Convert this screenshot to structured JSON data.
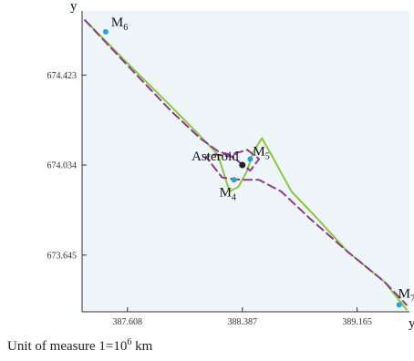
{
  "chart_data": {
    "type": "line",
    "xlabel": "y",
    "ylabel": "y",
    "xlim": [
      387.3,
      389.52
    ],
    "ylim": [
      673.4,
      674.7
    ],
    "x_ticks": [
      "387.608",
      "388.387",
      "389.165"
    ],
    "y_ticks": [
      "674.423",
      "674.034",
      "673.645"
    ],
    "grid": false,
    "background": "#eef6f9",
    "series": [
      {
        "style": "solid",
        "color": "#8dc63f",
        "x": [
          387.32,
          387.63,
          387.9,
          388.1,
          388.22,
          388.27,
          388.3,
          388.36,
          388.42,
          388.46,
          388.52,
          388.6,
          388.72,
          388.9,
          389.1,
          389.35,
          389.5
        ],
        "y": [
          674.66,
          674.46,
          674.29,
          674.16,
          674.08,
          673.98,
          673.92,
          673.94,
          674.01,
          674.09,
          674.15,
          674.06,
          673.92,
          673.8,
          673.66,
          673.53,
          673.41
        ]
      },
      {
        "style": "dashed",
        "color": "#8b3c8f",
        "x": [
          387.32,
          387.63,
          387.9,
          388.1,
          388.23,
          388.3,
          388.37,
          388.42,
          388.46,
          388.5,
          388.44,
          388.42,
          388.38,
          388.32,
          388.2,
          388.14,
          388.25,
          388.38,
          388.5,
          388.65,
          388.85,
          389.1,
          389.35,
          389.5
        ],
        "y": [
          674.66,
          674.45,
          674.27,
          674.15,
          674.09,
          674.08,
          674.09,
          674.1,
          674.08,
          674.06,
          674.01,
          674.02,
          674.04,
          674.07,
          674.08,
          674.07,
          673.98,
          673.97,
          673.97,
          673.92,
          673.8,
          673.66,
          673.53,
          673.43
        ]
      }
    ],
    "points": [
      {
        "label": "M",
        "sub": "6",
        "x": 387.46,
        "y": 674.61,
        "color": "#29a3d6"
      },
      {
        "label": "M",
        "sub": "5",
        "x": 388.44,
        "y": 674.06,
        "color": "#29a3d6"
      },
      {
        "label": "M",
        "sub": "4",
        "x": 388.33,
        "y": 673.97,
        "color": "#29a3d6"
      },
      {
        "label": "M",
        "sub": "7",
        "x": 389.45,
        "y": 673.43,
        "color": "#29a3d6"
      },
      {
        "label": "Asteroid",
        "x": 388.387,
        "y": 674.034,
        "color": "#222222"
      }
    ]
  },
  "footer": {
    "prefix": "Unit of measure 1=10",
    "exponent": "6",
    "suffix": " km"
  }
}
